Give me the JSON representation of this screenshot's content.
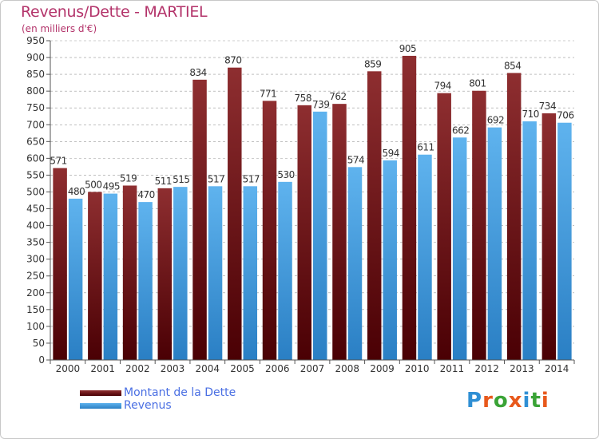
{
  "title": "Revenus/Dette - MARTIEL",
  "subtitle": "(en milliers d'€)",
  "logo": {
    "letters": [
      "P",
      "r",
      "o",
      "x",
      "i",
      "t",
      "i"
    ],
    "colors": [
      "#2f8fd4",
      "#e8591c",
      "#3aa336",
      "#e8591c",
      "#2f8fd4",
      "#3aa336",
      "#e8591c"
    ]
  },
  "colors": {
    "dette": "#7a1e22",
    "revenus": "#4fa6e6",
    "axis_text": "#333333",
    "grid": "#999999"
  },
  "chart_data": {
    "type": "bar",
    "categories": [
      "2000",
      "2001",
      "2002",
      "2003",
      "2004",
      "2005",
      "2006",
      "2007",
      "2008",
      "2009",
      "2010",
      "2011",
      "2012",
      "2013",
      "2014"
    ],
    "series": [
      {
        "name": "Montant de la Dette",
        "values": [
          571,
          500,
          519,
          511,
          834,
          870,
          771,
          758,
          762,
          859,
          905,
          794,
          801,
          854,
          734
        ]
      },
      {
        "name": "Revenus",
        "values": [
          480,
          495,
          470,
          515,
          517,
          517,
          530,
          739,
          574,
          594,
          611,
          662,
          692,
          710,
          706
        ]
      }
    ],
    "ylim": [
      0,
      950
    ],
    "ytick_step": 50,
    "grid": true,
    "legend_position": "bottom-left"
  }
}
